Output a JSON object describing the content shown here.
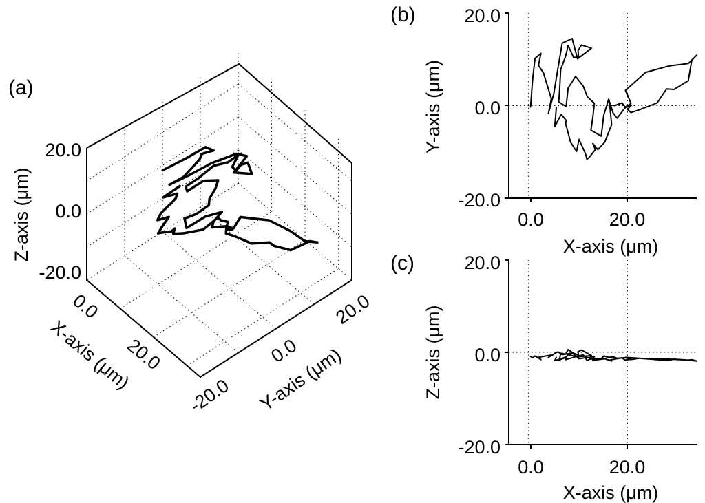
{
  "chart_data": [
    {
      "panel": "(a)",
      "type": "line",
      "projection": "3d",
      "xlabel": "X-axis (μm)",
      "ylabel": "Y-axis (μm)",
      "zlabel": "Z-axis (μm)",
      "xticks": [
        "0.0",
        "20.0"
      ],
      "yticks": [
        "-20.0",
        "0.0",
        "20.0"
      ],
      "zticks": [
        "-20.0",
        "0.0",
        "20.0"
      ],
      "xlim": [
        0,
        34
      ],
      "ylim": [
        -20,
        20
      ],
      "zlim": [
        -20,
        20
      ],
      "grid": true,
      "series": [
        {
          "x": [
            0.4,
            0.8,
            1.3,
            2.5,
            2.0,
            3.0,
            4.6,
            4.0,
            5.1,
            5.9,
            6.8,
            8.8,
            9.9,
            12.7,
            10.7,
            10.0,
            10.1,
            9.1,
            8.0,
            7.5,
            6.5,
            6.3,
            6.1,
            7.6,
            8.0,
            9.5,
            11.0,
            11.9,
            13.3,
            13.0,
            12.6,
            14.7,
            15.2,
            16.2,
            17.1,
            17.9,
            19.5,
            20.7,
            19.6,
            23.7,
            28.5,
            32.3,
            34.0,
            33.0,
            32.3,
            29.4,
            27.9,
            26.0,
            22.4,
            20.7,
            20.0,
            20.8,
            19.5,
            18.9,
            17.4,
            16.4,
            16.8,
            15.4,
            14.0,
            13.0,
            13.5,
            12.4,
            11.8,
            11.5,
            10.2,
            9.7,
            8.5,
            7.5,
            7.6,
            6.6,
            5.3,
            5.6
          ],
          "y": [
            -0.3,
            5.5,
            10.2,
            11.3,
            8.7,
            7.1,
            1.5,
            -1.7,
            2.6,
            7.8,
            13.5,
            14.5,
            10.1,
            12.4,
            13.1,
            11.9,
            10.5,
            10.4,
            13.0,
            10.7,
            7.8,
            3.9,
            0.8,
            -0.2,
            3.8,
            6.3,
            4.3,
            1.9,
            0.5,
            -2.5,
            -5.3,
            -6.6,
            -2.1,
            1.4,
            -1.6,
            -2.7,
            -0.5,
            0.5,
            3.3,
            7.2,
            8.6,
            9.1,
            10.9,
            9.8,
            5.4,
            3.5,
            3.6,
            0.6,
            -0.9,
            -1.5,
            -0.8,
            0.1,
            -0.3,
            0.6,
            0.0,
            0.2,
            -4.1,
            -7.9,
            -9.5,
            -8.2,
            -9.5,
            -11.0,
            -11.6,
            -10.4,
            -7.3,
            -9.9,
            -7.9,
            -3.9,
            -3.2,
            -1.9,
            -4.5,
            -0.4
          ],
          "z": [
            -0.9,
            -1.2,
            -0.8,
            -1.6,
            -1.1,
            -0.9,
            -0.6,
            -1.1,
            -0.4,
            0.1,
            -0.5,
            -0.2,
            -1.0,
            -0.7,
            0.5,
            0.1,
            -0.6,
            -0.2,
            0.6,
            -0.4,
            -0.2,
            -1.3,
            -1.7,
            -1.1,
            -0.5,
            -0.9,
            -0.6,
            -1.2,
            -0.9,
            -1.6,
            -1.3,
            -1.4,
            -0.8,
            -1.1,
            -1.0,
            -1.3,
            -1.2,
            -1.5,
            -1.1,
            -1.4,
            -1.5,
            -1.7,
            -1.9,
            -1.6,
            -1.7,
            -1.5,
            -1.8,
            -1.6,
            -1.3,
            -1.6,
            -1.4,
            -1.5,
            -1.7,
            -1.2,
            -1.5,
            -1.7,
            -1.9,
            -1.4,
            -1.6,
            -1.8,
            -1.3,
            -1.5,
            -1.8,
            -1.2,
            -1.4,
            -0.9,
            -1.3,
            -1.6,
            -1.0,
            -1.4,
            -1.8,
            -1.1
          ]
        }
      ]
    },
    {
      "panel": "(b)",
      "type": "line",
      "xlabel": "X-axis (μm)",
      "ylabel": "Y-axis (μm)",
      "xticks": [
        "0.0",
        "20.0"
      ],
      "yticks": [
        "-20.0",
        "0.0",
        "20.0"
      ],
      "xlim": [
        -4,
        34
      ],
      "ylim": [
        -20,
        20
      ],
      "reference_lines": {
        "x": [
          0,
          20
        ],
        "y": [
          0
        ]
      },
      "series_ref": "(a)",
      "projection_of": [
        "x",
        "y"
      ]
    },
    {
      "panel": "(c)",
      "type": "line",
      "xlabel": "X-axis (μm)",
      "ylabel": "Z-axis (μm)",
      "xticks": [
        "0.0",
        "20.0"
      ],
      "yticks": [
        "-20.0",
        "0.0",
        "20.0"
      ],
      "xlim": [
        -4,
        34
      ],
      "ylim": [
        -20,
        20
      ],
      "reference_lines": {
        "x": [
          0,
          20
        ],
        "y": [
          0
        ]
      },
      "series_ref": "(a)",
      "projection_of": [
        "x",
        "z"
      ]
    }
  ]
}
